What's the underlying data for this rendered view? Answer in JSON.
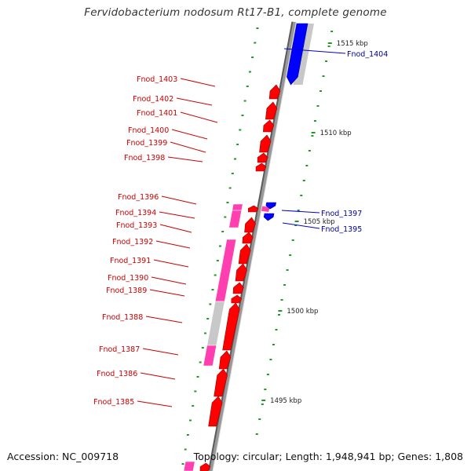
{
  "title": "Fervidobacterium nodosum Rt17-B1, complete genome",
  "footer": {
    "accession": "Accession: NC_009718",
    "summary": "Topology: circular; Length: 1,948,941 bp; Genes: 1,808"
  },
  "colors": {
    "backbone": "#999999",
    "forward_gene": "#ff0000",
    "reverse_gene": "#0000ff",
    "feature_magenta": "#ff3fb0",
    "feature_grey": "#c8c8c8",
    "tick": "#229922",
    "label_forward": "#cc0000",
    "label_reverse": "#000099"
  },
  "scale_labels": [
    "1515 kbp",
    "1510 kbp",
    "1505 kbp",
    "1500 kbp",
    "1495 kbp"
  ],
  "genes": [
    {
      "id": "Fnod_1404",
      "strand": "reverse"
    },
    {
      "id": "Fnod_1403",
      "strand": "forward"
    },
    {
      "id": "Fnod_1402",
      "strand": "forward"
    },
    {
      "id": "Fnod_1401",
      "strand": "forward"
    },
    {
      "id": "Fnod_1400",
      "strand": "forward"
    },
    {
      "id": "Fnod_1399",
      "strand": "forward"
    },
    {
      "id": "Fnod_1398",
      "strand": "forward"
    },
    {
      "id": "Fnod_1397",
      "strand": "reverse"
    },
    {
      "id": "Fnod_1396",
      "strand": "forward"
    },
    {
      "id": "Fnod_1395",
      "strand": "reverse"
    },
    {
      "id": "Fnod_1394",
      "strand": "forward"
    },
    {
      "id": "Fnod_1393",
      "strand": "forward"
    },
    {
      "id": "Fnod_1392",
      "strand": "forward"
    },
    {
      "id": "Fnod_1391",
      "strand": "forward"
    },
    {
      "id": "Fnod_1390",
      "strand": "forward"
    },
    {
      "id": "Fnod_1389",
      "strand": "forward"
    },
    {
      "id": "Fnod_1388",
      "strand": "forward"
    },
    {
      "id": "Fnod_1387",
      "strand": "forward"
    },
    {
      "id": "Fnod_1386",
      "strand": "forward"
    },
    {
      "id": "Fnod_1385",
      "strand": "forward"
    }
  ]
}
